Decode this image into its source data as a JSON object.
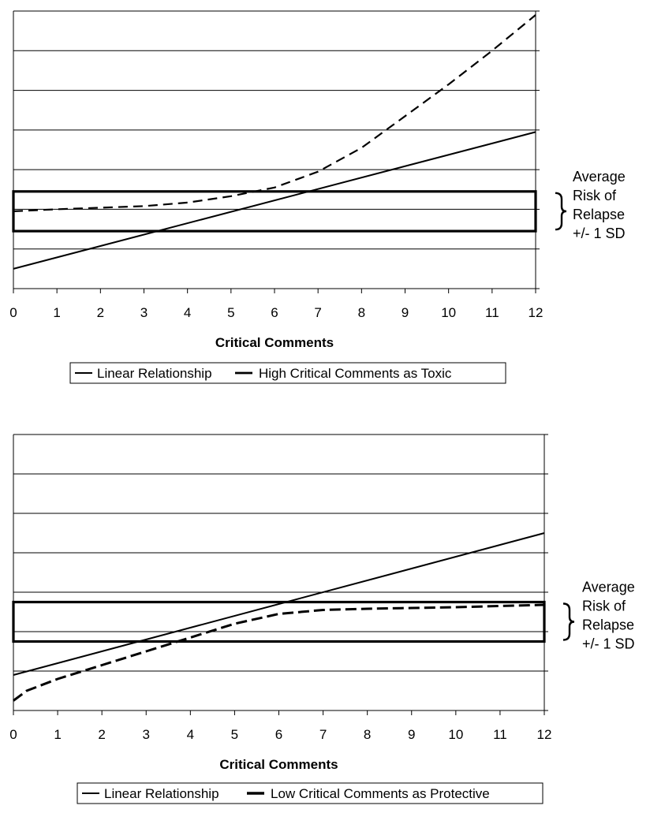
{
  "chart_data": [
    {
      "type": "line",
      "title": "",
      "xlabel": "Critical Comments",
      "ylabel": "",
      "xlim": [
        0,
        12
      ],
      "ylim": [
        0,
        7
      ],
      "ticks": [
        "0",
        "1",
        "2",
        "3",
        "4",
        "5",
        "6",
        "7",
        "8",
        "9",
        "10",
        "11",
        "12"
      ],
      "grid": true,
      "series": [
        {
          "name": "Linear Relationship",
          "style": "solid",
          "x": [
            0,
            12
          ],
          "y": [
            0.5,
            3.95
          ]
        },
        {
          "name": "High Critical Comments as Toxic",
          "style": "dashed",
          "x": [
            0,
            1,
            2,
            3,
            4,
            5,
            6,
            7,
            8,
            9,
            10,
            11,
            12
          ],
          "y": [
            1.95,
            2.0,
            2.04,
            2.08,
            2.17,
            2.33,
            2.55,
            2.95,
            3.55,
            4.35,
            5.15,
            6.0,
            6.9
          ]
        }
      ],
      "band": {
        "low": 1.45,
        "high": 2.45
      },
      "band_label": [
        "Average",
        "Risk of",
        "Relapse",
        "+/- 1 SD"
      ],
      "legend": [
        "Linear Relationship",
        "High Critical Comments as Toxic"
      ]
    },
    {
      "type": "line",
      "title": "",
      "xlabel": "Critical Comments",
      "ylabel": "",
      "xlim": [
        0,
        12
      ],
      "ylim": [
        0,
        7
      ],
      "ticks": [
        "0",
        "1",
        "2",
        "3",
        "4",
        "5",
        "6",
        "7",
        "8",
        "9",
        "10",
        "11",
        "12"
      ],
      "grid": true,
      "series": [
        {
          "name": "Linear Relationship",
          "style": "solid",
          "x": [
            0,
            12
          ],
          "y": [
            0.9,
            4.5
          ]
        },
        {
          "name": "Low Critical Comments as Protective",
          "style": "dashed",
          "x": [
            0,
            0.3,
            1,
            2,
            3,
            4,
            5,
            6,
            7,
            8,
            9,
            10,
            11,
            12
          ],
          "y": [
            0.25,
            0.5,
            0.8,
            1.15,
            1.5,
            1.85,
            2.2,
            2.45,
            2.55,
            2.58,
            2.6,
            2.62,
            2.65,
            2.68
          ]
        }
      ],
      "band": {
        "low": 1.75,
        "high": 2.75
      },
      "band_label": [
        "Average",
        "Risk of",
        "Relapse",
        "+/- 1 SD"
      ],
      "legend": [
        "Linear Relationship",
        "Low Critical Comments as Protective"
      ]
    }
  ]
}
